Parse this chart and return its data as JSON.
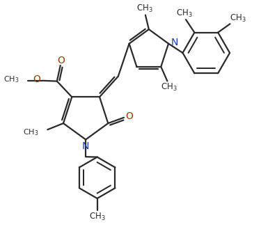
{
  "bg_color": "#ffffff",
  "line_color": "#2a2a2a",
  "N_color": "#1f3d99",
  "O_color": "#8b4000",
  "bond_lw": 1.6,
  "dbo": 0.08,
  "figsize": [
    3.98,
    3.49
  ],
  "dpi": 100,
  "xlim": [
    0,
    9.5
  ],
  "ylim": [
    0,
    8.3
  ]
}
